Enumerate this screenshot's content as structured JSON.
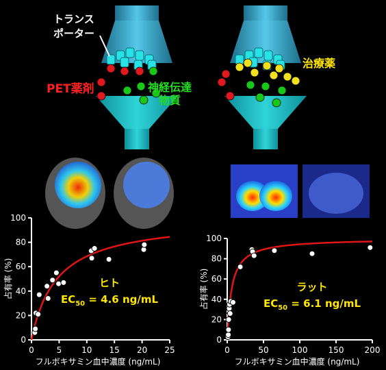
{
  "diagram": {
    "transporter_label_line1": "トランス",
    "transporter_label_line2": "ポーター",
    "pet_drug_label": "PET薬剤",
    "neurotransmitter_label_line1": "神経伝達",
    "neurotransmitter_label_line2": "物質",
    "therapeutic_drug_label": "治療薬",
    "colors": {
      "funnel": "#3fa7c9",
      "transporter": "#27e3e3",
      "pet_drug": "#e0191e",
      "neurotransmitter": "#19c719",
      "therapeutic_drug": "#f0e01e",
      "pet_label": "#ff2020",
      "neuro_label": "#22dd22",
      "drug_label": "#ffe600",
      "legend_text": "#ffe600",
      "fit_curve": "#e01515"
    }
  },
  "chart_data": [
    {
      "type": "scatter",
      "xlabel": "フルボキサミン血中濃度 (ng/mL)",
      "ylabel": "占有率 (%)",
      "xlim": [
        0,
        25
      ],
      "ylim": [
        0,
        100
      ],
      "xticks": [
        0,
        5,
        10,
        15,
        20,
        25
      ],
      "yticks": [
        0,
        20,
        40,
        60,
        80,
        100
      ],
      "legend_title": "ヒト",
      "ec50_prefix": "EC",
      "ec50_subscript": "50",
      "ec50_value": " = 4.6 ng/mL",
      "fit": {
        "model": "emax",
        "emax": 100,
        "ec50": 4.6
      },
      "points": [
        {
          "x": 0.6,
          "y": 6
        },
        {
          "x": 0.7,
          "y": 9
        },
        {
          "x": 0.8,
          "y": 22
        },
        {
          "x": 1.2,
          "y": 21
        },
        {
          "x": 1.4,
          "y": 37
        },
        {
          "x": 2.8,
          "y": 44
        },
        {
          "x": 3.0,
          "y": 34
        },
        {
          "x": 3.8,
          "y": 49
        },
        {
          "x": 4.5,
          "y": 55
        },
        {
          "x": 4.9,
          "y": 46
        },
        {
          "x": 5.8,
          "y": 47
        },
        {
          "x": 10.8,
          "y": 73
        },
        {
          "x": 10.9,
          "y": 67
        },
        {
          "x": 11.4,
          "y": 75
        },
        {
          "x": 14.0,
          "y": 66
        },
        {
          "x": 20.3,
          "y": 74
        },
        {
          "x": 20.4,
          "y": 78
        }
      ]
    },
    {
      "type": "scatter",
      "xlabel": "フルボキサミン血中濃度 (ng/mL)",
      "ylabel": "占有率 (%)",
      "xlim": [
        0,
        200
      ],
      "ylim": [
        0,
        100
      ],
      "xticks": [
        0,
        50,
        100,
        150,
        200
      ],
      "yticks": [
        0,
        20,
        40,
        60,
        80,
        100
      ],
      "legend_title": "ラット",
      "ec50_prefix": "EC",
      "ec50_subscript": "50",
      "ec50_value": " = 6.1 ng/mL",
      "fit": {
        "model": "emax",
        "emax": 100,
        "ec50": 6.1
      },
      "points": [
        {
          "x": 1.0,
          "y": 3
        },
        {
          "x": 1.5,
          "y": 5
        },
        {
          "x": 1.8,
          "y": 10
        },
        {
          "x": 2.0,
          "y": 20
        },
        {
          "x": 2.3,
          "y": 28
        },
        {
          "x": 2.8,
          "y": 31
        },
        {
          "x": 3.2,
          "y": 35
        },
        {
          "x": 4.0,
          "y": 26
        },
        {
          "x": 5.0,
          "y": 38
        },
        {
          "x": 8.0,
          "y": 37
        },
        {
          "x": 18.0,
          "y": 72
        },
        {
          "x": 34.0,
          "y": 89
        },
        {
          "x": 35.0,
          "y": 87
        },
        {
          "x": 37.0,
          "y": 83
        },
        {
          "x": 65.0,
          "y": 88
        },
        {
          "x": 117.0,
          "y": 85
        },
        {
          "x": 197.0,
          "y": 91
        }
      ]
    }
  ]
}
